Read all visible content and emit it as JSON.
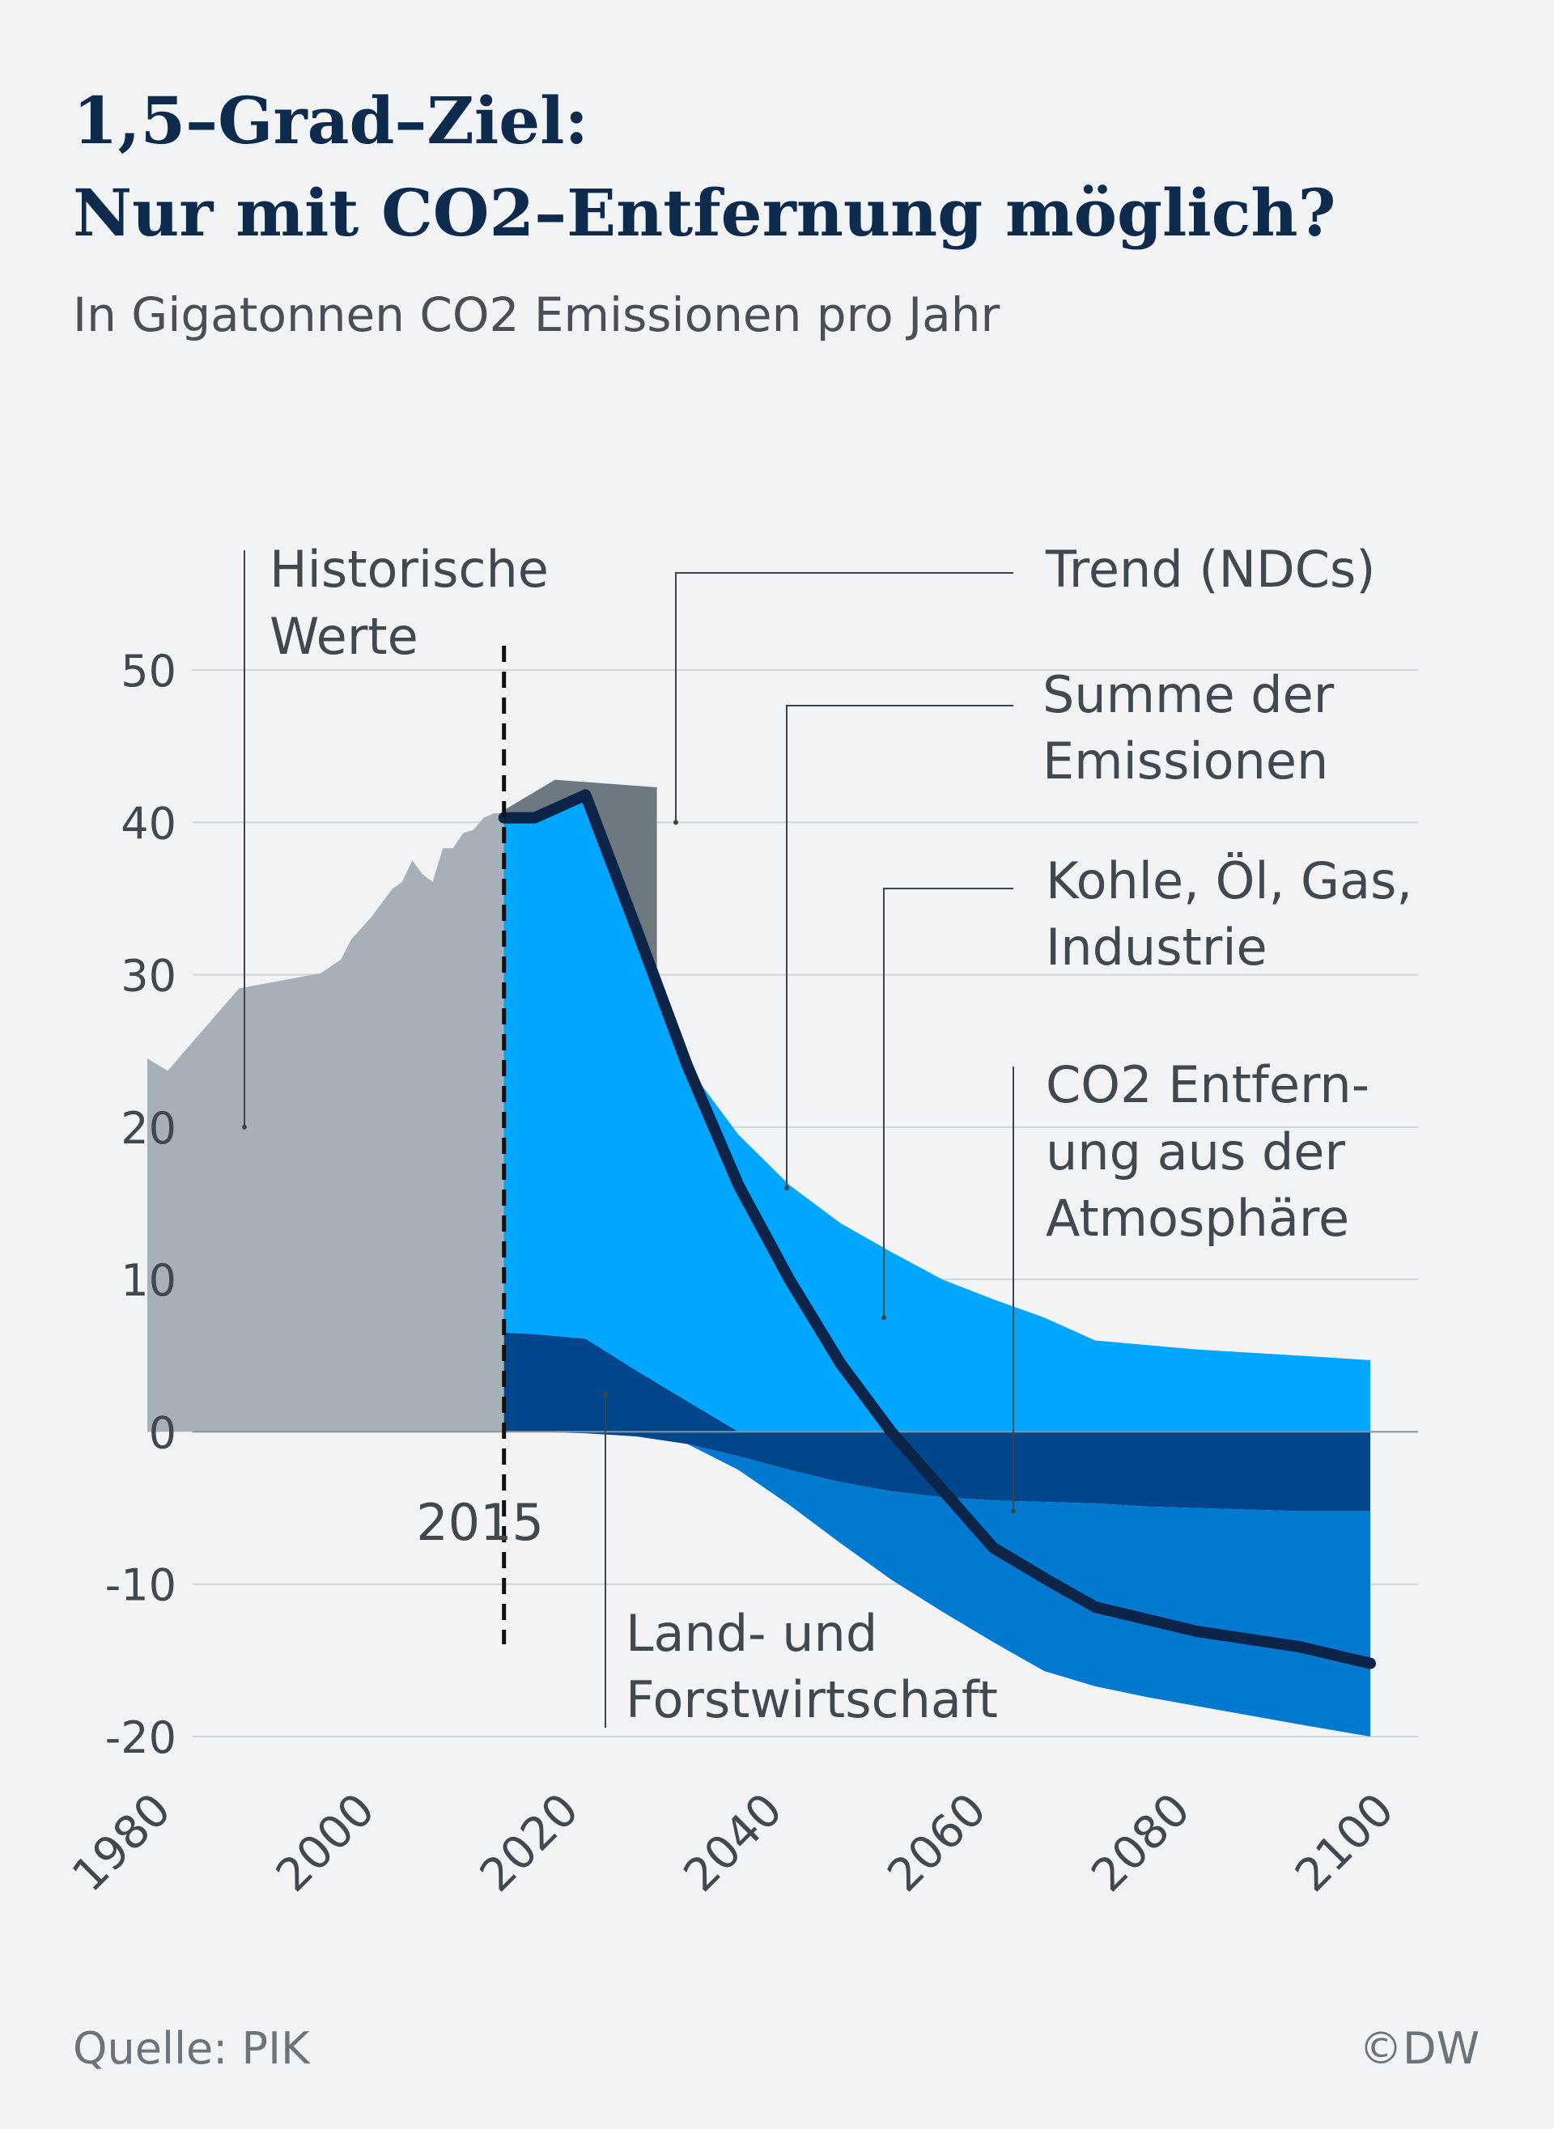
{
  "title": {
    "line1": "1,5–Grad–Ziel:",
    "line2": "Nur mit CO2–Entfernung möglich?"
  },
  "subtitle": "In Gigatonnen CO2 Emissionen pro Jahr",
  "source": "Quelle: PIK",
  "copyright": "©DW",
  "colors": {
    "historical": "#a7b0b8",
    "trend": "#6e7881",
    "fossil": "#00a6ff",
    "land_use": "#01468a",
    "co2_removal": "#0079cf",
    "sum_line": "#0b2448",
    "grid": "#cfd4d9",
    "text": "#414850"
  },
  "chart_data": {
    "type": "area",
    "title": "1,5–Grad–Ziel: Nur mit CO2–Entfernung möglich?",
    "subtitle": "In Gigatonnen CO2 Emissionen pro Jahr",
    "xlabel": "",
    "ylabel": "",
    "xlim": [
      1980,
      2100
    ],
    "ylim": [
      -20,
      50
    ],
    "x_ticks": [
      1980,
      2000,
      2020,
      2040,
      2060,
      2080,
      2100
    ],
    "y_ticks": [
      -20,
      -10,
      0,
      10,
      20,
      30,
      40,
      50
    ],
    "grid": true,
    "series": [
      {
        "name": "Historische Werte",
        "kind": "area",
        "color": "#a7b0b8",
        "x": [
          1980,
          1982,
          1989,
          1997,
          1999,
          2000,
          2002,
          2004,
          2005,
          2006,
          2007,
          2008,
          2009,
          2010,
          2011,
          2012,
          2013,
          2014,
          2015
        ],
        "y": [
          24.5,
          23.7,
          29.1,
          30.1,
          31.0,
          32.3,
          33.8,
          35.6,
          36.1,
          37.5,
          36.6,
          36.1,
          38.3,
          38.3,
          39.3,
          39.5,
          40.3,
          40.6,
          40.6
        ]
      },
      {
        "name": "Trend (NDCs)",
        "kind": "area",
        "color": "#6e7881",
        "x": [
          2015,
          2020,
          2030
        ],
        "y": [
          40.8,
          42.8,
          42.3
        ]
      },
      {
        "name": "Kohle, Öl, Gas, Industrie",
        "kind": "area",
        "color": "#00a6ff",
        "x": [
          2015,
          2018,
          2023,
          2028,
          2033,
          2038,
          2043,
          2048,
          2053,
          2058,
          2063,
          2068,
          2073,
          2078,
          2083,
          2088,
          2093,
          2100
        ],
        "y_top": [
          40.3,
          40.3,
          41.8,
          33.0,
          24.0,
          19.5,
          16.2,
          13.7,
          11.8,
          10.0,
          8.7,
          7.5,
          6.0,
          5.7,
          5.4,
          5.2,
          5.0,
          4.7
        ],
        "y_bottom": [
          6.5,
          6.4,
          6.1,
          4.0,
          2.0,
          0.0,
          0.0,
          0.0,
          0.0,
          0.0,
          0.0,
          0.0,
          0.0,
          0.0,
          0.0,
          0.0,
          0.0,
          0.0
        ]
      },
      {
        "name": "Land- und Forstwirtschaft",
        "kind": "area",
        "color": "#01468a",
        "x": [
          2015,
          2018,
          2023,
          2028,
          2033,
          2038,
          2043,
          2048,
          2053,
          2058,
          2063,
          2068,
          2073,
          2078,
          2083,
          2088,
          2093,
          2100
        ],
        "y_top": [
          6.5,
          6.4,
          6.1,
          4.0,
          2.0,
          0.0,
          0.0,
          0.0,
          0.0,
          0.0,
          0.0,
          0.0,
          0.0,
          0.0,
          0.0,
          0.0,
          0.0,
          0.0
        ],
        "y_bottom": [
          0.0,
          0.0,
          -0.1,
          -0.3,
          -0.8,
          -1.6,
          -2.5,
          -3.3,
          -3.9,
          -4.3,
          -4.5,
          -4.6,
          -4.7,
          -4.9,
          -5.0,
          -5.1,
          -5.2,
          -5.2
        ]
      },
      {
        "name": "CO2 Entfernung aus der Atmosphäre",
        "kind": "area",
        "color": "#0079cf",
        "x": [
          2015,
          2018,
          2023,
          2028,
          2033,
          2038,
          2043,
          2048,
          2053,
          2058,
          2063,
          2068,
          2073,
          2078,
          2083,
          2088,
          2093,
          2100
        ],
        "y_top": [
          0.0,
          0.0,
          -0.1,
          -0.3,
          -0.8,
          -1.6,
          -2.5,
          -3.3,
          -3.9,
          -4.3,
          -4.5,
          -4.6,
          -4.7,
          -4.9,
          -5.0,
          -5.1,
          -5.2,
          -5.2
        ],
        "y_bottom": [
          0.0,
          0.0,
          -0.1,
          -0.3,
          -0.8,
          -2.5,
          -4.8,
          -7.3,
          -9.7,
          -11.8,
          -13.8,
          -15.7,
          -16.7,
          -17.4,
          -18.0,
          -18.6,
          -19.2,
          -20.0
        ]
      },
      {
        "name": "Summe der Emissionen",
        "kind": "line",
        "color": "#0b2448",
        "x": [
          2015,
          2018,
          2023,
          2028,
          2033,
          2038,
          2043,
          2048,
          2053,
          2058,
          2063,
          2068,
          2073,
          2078,
          2083,
          2088,
          2093,
          2100
        ],
        "y": [
          40.3,
          40.3,
          41.8,
          33.0,
          24.0,
          16.2,
          10.0,
          4.5,
          0.0,
          -3.8,
          -7.6,
          -9.6,
          -11.5,
          -12.3,
          -13.1,
          -13.6,
          -14.1,
          -15.2
        ]
      }
    ],
    "annotations": [
      {
        "key": "historisch",
        "lines": [
          "Historische",
          "Werte"
        ],
        "anchor_x": 1982,
        "anchor_y": 20.0
      },
      {
        "key": "trend",
        "lines": [
          "Trend (NDCs)"
        ],
        "anchor_x": 2027,
        "anchor_y": 40.0
      },
      {
        "key": "summe",
        "lines": [
          "Summe der",
          "Emissionen"
        ],
        "anchor_x": 2038,
        "anchor_y": 16.0
      },
      {
        "key": "fossil",
        "lines": [
          "Kohle, Öl, Gas,",
          "Industrie"
        ],
        "anchor_x": 2048,
        "anchor_y": 7.5
      },
      {
        "key": "removal",
        "lines": [
          "CO2 Entfern-",
          "ung aus der",
          "Atmosphäre"
        ],
        "anchor_x": 2063,
        "anchor_y": -5.2
      },
      {
        "key": "land",
        "lines": [
          "Land- und",
          "Forstwirtschaft"
        ],
        "anchor_x": 2019,
        "anchor_y": 2.5
      },
      {
        "key": "marker",
        "lines": [
          "2015"
        ],
        "anchor_x": 2015,
        "anchor_y": 0
      }
    ]
  }
}
